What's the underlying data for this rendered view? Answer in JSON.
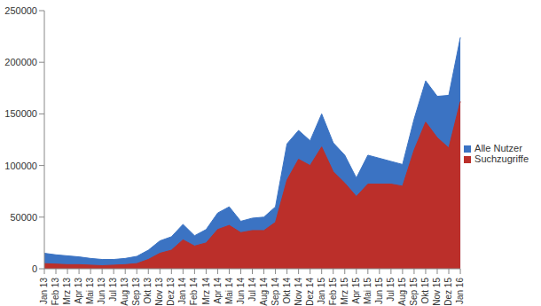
{
  "chart_data": {
    "type": "area",
    "stacked": false,
    "grid": false,
    "legend": "right",
    "categories": [
      "Jan 13",
      "Feb 13",
      "Mrz 13",
      "Apr 13",
      "Mai 13",
      "Jun 13",
      "Jul 13",
      "Aug 13",
      "Sep 13",
      "Okt 13",
      "Nov 13",
      "Dez 13",
      "Jan 14",
      "Feb 14",
      "Mrz 14",
      "Apr 14",
      "Mai 14",
      "Jun 14",
      "Jul 14",
      "Aug 14",
      "Sep 14",
      "Okt 14",
      "Nov 14",
      "Dez 14",
      "Jan 15",
      "Feb 15",
      "Mrz 15",
      "Apr 15",
      "Mai 15",
      "Jun 15",
      "Jul 15",
      "Aug 15",
      "Sep 15",
      "Okt 15",
      "Nov 15",
      "Dez 15",
      "Jan 16"
    ],
    "series": [
      {
        "name": "Alle Nutzer",
        "color": "#3b73c3",
        "values": [
          15000,
          13500,
          12500,
          11500,
          10000,
          9000,
          9000,
          10000,
          12000,
          18000,
          27000,
          31000,
          43000,
          32000,
          38000,
          54000,
          60000,
          46000,
          49000,
          50000,
          60000,
          121000,
          134000,
          124000,
          150000,
          122000,
          110000,
          88000,
          110000,
          107000,
          104000,
          101000,
          145000,
          182000,
          167000,
          168000,
          224000
        ]
      },
      {
        "name": "Suchzugriffe",
        "color": "#bb2f2a",
        "values": [
          5000,
          4500,
          4000,
          4000,
          3500,
          3000,
          3500,
          4000,
          5000,
          9000,
          15000,
          18000,
          28000,
          22000,
          25000,
          38000,
          42000,
          35000,
          37000,
          37000,
          45000,
          86000,
          106000,
          100000,
          118000,
          94000,
          83000,
          70000,
          82000,
          82000,
          82000,
          80000,
          115000,
          142000,
          127000,
          117000,
          162000
        ]
      }
    ],
    "ylim": [
      0,
      250000
    ],
    "yticks": [
      0,
      50000,
      100000,
      150000,
      200000,
      250000
    ]
  }
}
